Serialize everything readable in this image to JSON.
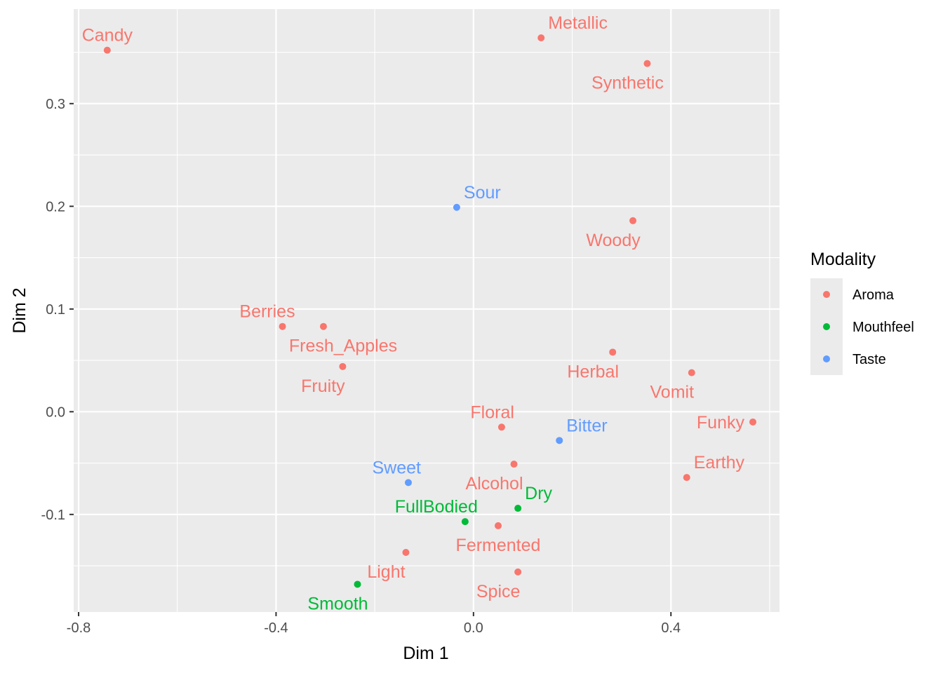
{
  "chart_data": {
    "type": "scatter",
    "xlabel": "Dim 1",
    "ylabel": "Dim 2",
    "xlim": [
      -0.81,
      0.62
    ],
    "ylim": [
      -0.195,
      0.392
    ],
    "x_ticks": [
      -0.8,
      -0.4,
      0.0,
      0.4
    ],
    "x_tick_labels": [
      "-0.8",
      "-0.4",
      "0.0",
      "0.4"
    ],
    "y_ticks": [
      -0.1,
      0.0,
      0.1,
      0.2,
      0.3
    ],
    "y_tick_labels": [
      "-0.1",
      "0.0",
      "0.1",
      "0.2",
      "0.3"
    ],
    "grid": true,
    "legend": {
      "title": "Modality",
      "placement": "right",
      "entries": [
        {
          "name": "Aroma",
          "color": "#F8766D"
        },
        {
          "name": "Mouthfeel",
          "color": "#00BA38"
        },
        {
          "name": "Taste",
          "color": "#619CFF"
        }
      ]
    },
    "points": [
      {
        "label": "Candy",
        "group": "Aroma",
        "x": -0.742,
        "y": 0.352,
        "label_pos": "above"
      },
      {
        "label": "Metallic",
        "group": "Aroma",
        "x": 0.137,
        "y": 0.364,
        "label_pos": "above-right"
      },
      {
        "label": "Synthetic",
        "group": "Aroma",
        "x": 0.352,
        "y": 0.339,
        "label_pos": "below-left"
      },
      {
        "label": "Woody",
        "group": "Aroma",
        "x": 0.323,
        "y": 0.186,
        "label_pos": "below-left"
      },
      {
        "label": "Berries",
        "group": "Aroma",
        "x": -0.387,
        "y": 0.083,
        "label_pos": "above-left"
      },
      {
        "label": "Fresh_Apples",
        "group": "Aroma",
        "x": -0.304,
        "y": 0.083,
        "label_pos": "below-right"
      },
      {
        "label": "Fruity",
        "group": "Aroma",
        "x": -0.265,
        "y": 0.044,
        "label_pos": "below-left"
      },
      {
        "label": "Herbal",
        "group": "Aroma",
        "x": 0.282,
        "y": 0.058,
        "label_pos": "below-left"
      },
      {
        "label": "Vomit",
        "group": "Aroma",
        "x": 0.442,
        "y": 0.038,
        "label_pos": "below-left"
      },
      {
        "label": "Funky",
        "group": "Aroma",
        "x": 0.566,
        "y": -0.01,
        "label_pos": "left"
      },
      {
        "label": "Floral",
        "group": "Aroma",
        "x": 0.057,
        "y": -0.015,
        "label_pos": "above-left"
      },
      {
        "label": "Earthy",
        "group": "Aroma",
        "x": 0.432,
        "y": -0.064,
        "label_pos": "above-right"
      },
      {
        "label": "Alcohol",
        "group": "Aroma",
        "x": 0.082,
        "y": -0.051,
        "label_pos": "below-left"
      },
      {
        "label": "Fermented",
        "group": "Aroma",
        "x": 0.05,
        "y": -0.111,
        "label_pos": "below"
      },
      {
        "label": "Light",
        "group": "Aroma",
        "x": -0.137,
        "y": -0.137,
        "label_pos": "below-left"
      },
      {
        "label": "Spice",
        "group": "Aroma",
        "x": 0.09,
        "y": -0.156,
        "label_pos": "below-left"
      },
      {
        "label": "Dry",
        "group": "Mouthfeel",
        "x": 0.09,
        "y": -0.094,
        "label_pos": "above-right"
      },
      {
        "label": "FullBodied",
        "group": "Mouthfeel",
        "x": -0.017,
        "y": -0.107,
        "label_pos": "above-left"
      },
      {
        "label": "Smooth",
        "group": "Mouthfeel",
        "x": -0.235,
        "y": -0.168,
        "label_pos": "below-left"
      },
      {
        "label": "Sour",
        "group": "Taste",
        "x": -0.034,
        "y": 0.199,
        "label_pos": "above-right"
      },
      {
        "label": "Bitter",
        "group": "Taste",
        "x": 0.174,
        "y": -0.028,
        "label_pos": "above-right"
      },
      {
        "label": "Sweet",
        "group": "Taste",
        "x": -0.132,
        "y": -0.069,
        "label_pos": "above-left"
      }
    ]
  }
}
